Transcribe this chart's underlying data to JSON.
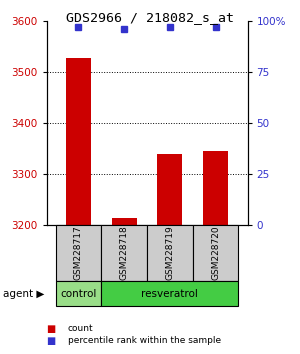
{
  "title": "GDS2966 / 218082_s_at",
  "samples": [
    "GSM228717",
    "GSM228718",
    "GSM228719",
    "GSM228720"
  ],
  "bar_values": [
    3527,
    3213,
    3340,
    3345
  ],
  "percentile_values": [
    97,
    96,
    97,
    97
  ],
  "ylim_left": [
    3200,
    3600
  ],
  "ylim_right": [
    0,
    100
  ],
  "yticks_left": [
    3200,
    3300,
    3400,
    3500,
    3600
  ],
  "yticks_right": [
    0,
    25,
    50,
    75,
    100
  ],
  "ytick_labels_right": [
    "0",
    "25",
    "50",
    "75",
    "100%"
  ],
  "bar_color": "#cc0000",
  "dot_color": "#3333cc",
  "bar_width": 0.55,
  "groups": [
    {
      "label": "control",
      "samples_idx": [
        0
      ],
      "color": "#99dd88"
    },
    {
      "label": "resveratrol",
      "samples_idx": [
        1,
        2,
        3
      ],
      "color": "#44cc44"
    }
  ],
  "group_row_label": "agent",
  "legend_count_label": "count",
  "legend_pct_label": "percentile rank within the sample",
  "title_fontsize": 9.5,
  "tick_fontsize": 7.5,
  "axis_label_color_left": "#cc0000",
  "axis_label_color_right": "#3333cc",
  "background_color": "#ffffff",
  "label_area_color": "#cccccc",
  "gridline_ticks": [
    3300,
    3400,
    3500
  ]
}
